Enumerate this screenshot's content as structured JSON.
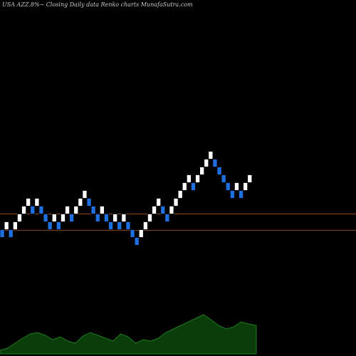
{
  "chart_data": [
    {
      "type": "renko",
      "title": "USA AZZ.8%~ Closing Daily data Renko charts MunafaSutra.com",
      "values": [
        0,
        1,
        0,
        1,
        2,
        3,
        4,
        3,
        4,
        3,
        2,
        1,
        2,
        1,
        2,
        3,
        2,
        3,
        4,
        5,
        4,
        3,
        2,
        3,
        2,
        1,
        2,
        1,
        2,
        1,
        0,
        -1,
        0,
        1,
        2,
        3,
        4,
        3,
        2,
        3,
        4,
        5,
        6,
        7,
        6,
        7,
        8,
        9,
        10,
        9,
        8,
        7,
        6,
        5,
        6,
        5,
        6,
        7
      ],
      "up_color": "#ffffff",
      "down_color": "#1e6fe0",
      "ylim": [
        -8,
        28
      ],
      "reference_lines": [
        2.5,
        0.4
      ],
      "reference_color": "#8a4a1a"
    },
    {
      "type": "area",
      "values": [
        5,
        8,
        15,
        22,
        28,
        30,
        26,
        20,
        24,
        18,
        15,
        25,
        30,
        26,
        22,
        18,
        28,
        24,
        15,
        20,
        18,
        22,
        30,
        35,
        40,
        45,
        50,
        55,
        48,
        40,
        35,
        38,
        45,
        42,
        40
      ],
      "color": "#0b3d0b",
      "line_color": "#1f7a1f",
      "ylim": [
        0,
        100
      ]
    }
  ]
}
